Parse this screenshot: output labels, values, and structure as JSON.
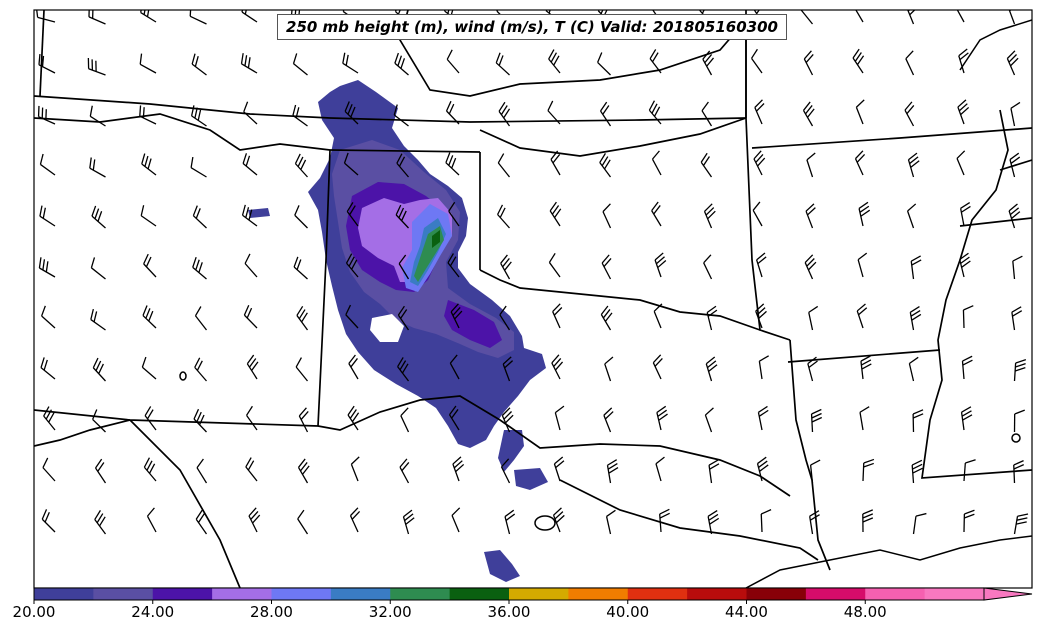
{
  "title": "250 mb height (m), wind (m/s), T (C) Valid: 201805160300",
  "colorbar": {
    "min": 20,
    "max": 52,
    "step": 2,
    "extend": "max",
    "tick_labels": [
      "20.00",
      "24.00",
      "28.00",
      "32.00",
      "36.00",
      "40.00",
      "44.00",
      "48.00"
    ],
    "tick_values": [
      20,
      24,
      28,
      32,
      36,
      40,
      44,
      48
    ],
    "colors": [
      "#3f3f9a",
      "#5a4fa3",
      "#4c13a8",
      "#a46ee6",
      "#6e78f4",
      "#3a7cc4",
      "#2e8c50",
      "#0a6010",
      "#d4aa00",
      "#f07d00",
      "#e03010",
      "#b80c0c",
      "#880008",
      "#d60c6a",
      "#f560b0",
      "#f878c0"
    ]
  },
  "map": {
    "type": "weather-map",
    "region": "Southern Plains / South-Central United States",
    "layers": [
      "wind speed shading",
      "wind barbs",
      "state boundaries",
      "coastline"
    ]
  }
}
